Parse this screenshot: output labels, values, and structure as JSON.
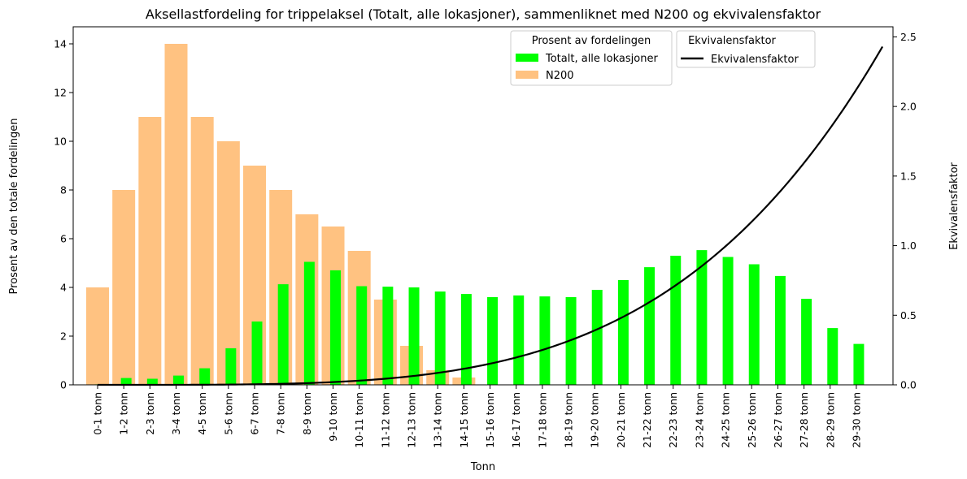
{
  "chart_data": {
    "type": "bar",
    "title": "Aksellastfordeling for trippelaksel (Totalt, alle lokasjoner), sammenliknet med N200 og ekvivalensfaktor",
    "xlabel": "Tonn",
    "ylabel": "Prosent av den totale fordelingen",
    "y2label": "Ekvivalensfaktor",
    "ylim": [
      0,
      14.7
    ],
    "y2lim": [
      0,
      2.5725
    ],
    "yticks": [
      "0",
      "2",
      "4",
      "6",
      "8",
      "10",
      "12",
      "14"
    ],
    "y2ticks": [
      "0.0",
      "0.5",
      "1.0",
      "1.5",
      "2.0",
      "2.5"
    ],
    "categories": [
      "0-1 tonn",
      "1-2 tonn",
      "2-3 tonn",
      "3-4 tonn",
      "4-5 tonn",
      "5-6 tonn",
      "6-7 tonn",
      "7-8 tonn",
      "8-9 tonn",
      "9-10 tonn",
      "10-11 tonn",
      "11-12 tonn",
      "12-13 tonn",
      "13-14 tonn",
      "14-15 tonn",
      "15-16 tonn",
      "16-17 tonn",
      "17-18 tonn",
      "18-19 tonn",
      "19-20 tonn",
      "20-21 tonn",
      "21-22 tonn",
      "22-23 tonn",
      "23-24 tonn",
      "24-25 tonn",
      "25-26 tonn",
      "26-27 tonn",
      "27-28 tonn",
      "28-29 tonn",
      "29-30 tonn"
    ],
    "series": [
      {
        "name": "N200",
        "color": "#ffc281",
        "values": [
          4.0,
          8.0,
          11.0,
          14.0,
          11.0,
          10.0,
          9.0,
          8.0,
          7.0,
          6.5,
          5.5,
          3.5,
          1.6,
          0.6,
          0.3,
          0,
          0,
          0,
          0,
          0,
          0,
          0,
          0,
          0,
          0,
          0,
          0,
          0,
          0,
          0
        ]
      },
      {
        "name": "Totalt, alle lokasjoner",
        "color": "#00ff00",
        "values": [
          0.02,
          0.28,
          0.25,
          0.38,
          0.68,
          1.5,
          2.6,
          4.13,
          5.05,
          4.7,
          4.05,
          4.03,
          4.0,
          3.83,
          3.73,
          3.6,
          3.67,
          3.63,
          3.6,
          3.9,
          4.3,
          4.83,
          5.3,
          5.53,
          5.25,
          4.95,
          4.47,
          3.53,
          2.33,
          1.68
        ]
      }
    ],
    "line": {
      "name": "Ekvivalensfaktor",
      "color": "#000000",
      "x_start": 0,
      "x_end": 30,
      "y_end": 2.43,
      "exponent": 4
    },
    "legend_groups": [
      {
        "title": "Prosent av fordelingen",
        "entries": [
          "Totalt, alle lokasjoner",
          "N200"
        ]
      },
      {
        "title": "Ekvivalensfaktor",
        "entries": [
          "Ekvivalensfaktor"
        ]
      }
    ],
    "legend_position": "top-right"
  }
}
